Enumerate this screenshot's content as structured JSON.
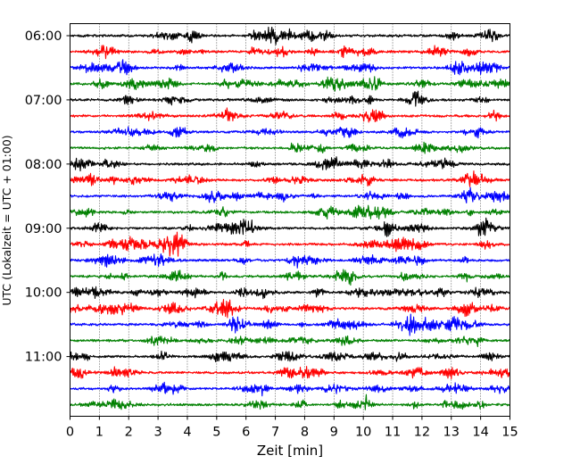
{
  "chart_data": {
    "type": "line",
    "title": "",
    "xlabel": "Zeit  [min]",
    "ylabel": "UTC (Lokalzeit = UTC + 01:00)",
    "xlim": [
      0,
      15
    ],
    "x_ticks": [
      "0",
      "1",
      "2",
      "3",
      "4",
      "5",
      "6",
      "7",
      "8",
      "9",
      "10",
      "11",
      "12",
      "13",
      "14",
      "15"
    ],
    "y_ticks": [
      "06:00",
      "07:00",
      "08:00",
      "09:00",
      "10:00",
      "11:00"
    ],
    "minutes_per_trace": 15,
    "grid": "vertical dotted",
    "trace_colors": [
      "#000000",
      "#ff0000",
      "#0000ff",
      "#008000"
    ],
    "traces": [
      {
        "start": "06:00",
        "color": "#000000"
      },
      {
        "start": "06:15",
        "color": "#ff0000"
      },
      {
        "start": "06:30",
        "color": "#0000ff"
      },
      {
        "start": "06:45",
        "color": "#008000"
      },
      {
        "start": "07:00",
        "color": "#000000"
      },
      {
        "start": "07:15",
        "color": "#ff0000"
      },
      {
        "start": "07:30",
        "color": "#0000ff"
      },
      {
        "start": "07:45",
        "color": "#008000"
      },
      {
        "start": "08:00",
        "color": "#000000"
      },
      {
        "start": "08:15",
        "color": "#ff0000"
      },
      {
        "start": "08:30",
        "color": "#0000ff"
      },
      {
        "start": "08:45",
        "color": "#008000"
      },
      {
        "start": "09:00",
        "color": "#000000"
      },
      {
        "start": "09:15",
        "color": "#ff0000"
      },
      {
        "start": "09:30",
        "color": "#0000ff"
      },
      {
        "start": "09:45",
        "color": "#008000"
      },
      {
        "start": "10:00",
        "color": "#000000"
      },
      {
        "start": "10:15",
        "color": "#ff0000"
      },
      {
        "start": "10:30",
        "color": "#0000ff"
      },
      {
        "start": "10:45",
        "color": "#008000"
      },
      {
        "start": "11:00",
        "color": "#000000"
      },
      {
        "start": "11:15",
        "color": "#ff0000"
      },
      {
        "start": "11:30",
        "color": "#0000ff"
      },
      {
        "start": "11:45",
        "color": "#008000"
      }
    ]
  }
}
